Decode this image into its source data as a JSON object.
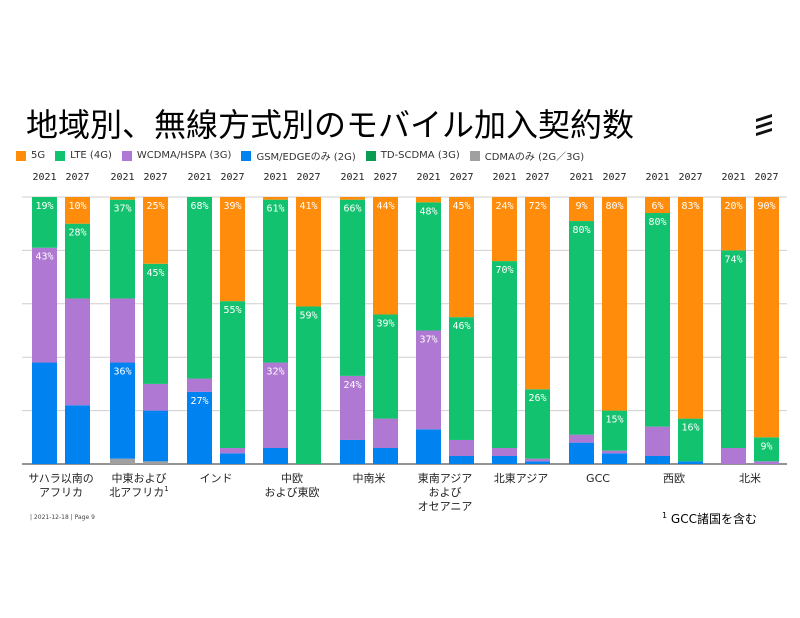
{
  "title": "地域別、無線方式別のモバイル加入契約数",
  "logo": "ericsson-logo",
  "footer": {
    "date_page": "| 2021-12-18 | Page 9",
    "footnote_mark": "1",
    "footnote_text": "GCC諸国を含む"
  },
  "chart_data": {
    "type": "bar",
    "stacked": true,
    "normalized": true,
    "title": "地域別、無線方式別のモバイル加入契約数",
    "xlabel": "",
    "ylabel": "",
    "ylim": [
      0,
      100
    ],
    "grid": true,
    "legend_position": "top-left",
    "legend": [
      {
        "name": "5G",
        "color": "#FF8C0A"
      },
      {
        "name": "LTE (4G)",
        "color": "#12C26E"
      },
      {
        "name": "WCDMA/HSPA (3G)",
        "color": "#AF78D2"
      },
      {
        "name": "GSM/EDGEのみ (2G)",
        "color": "#0082F0"
      },
      {
        "name": "TD-SCDMA (3G)",
        "color": "#0A9B55"
      },
      {
        "name": "CDMAのみ (2G／3G)",
        "color": "#A0A0A0"
      }
    ],
    "stack_order_bottom_to_top": [
      "CDMAのみ (2G／3G)",
      "TD-SCDMA (3G)",
      "GSM/EDGEのみ (2G)",
      "WCDMA/HSPA (3G)",
      "LTE (4G)",
      "5G"
    ],
    "regions": [
      {
        "label": [
          "サハラ以南の",
          "アフリカ"
        ],
        "footnote": ""
      },
      {
        "label": [
          "中東および",
          "北アフリカ"
        ],
        "footnote": "1"
      },
      {
        "label": [
          "インド"
        ],
        "footnote": ""
      },
      {
        "label": [
          "中欧",
          "および東欧"
        ],
        "footnote": ""
      },
      {
        "label": [
          "中南米"
        ],
        "footnote": ""
      },
      {
        "label": [
          "東南アジア",
          "および",
          "オセアニア"
        ],
        "footnote": ""
      },
      {
        "label": [
          "北東アジア"
        ],
        "footnote": ""
      },
      {
        "label": [
          "GCC"
        ],
        "footnote": ""
      },
      {
        "label": [
          "西欧"
        ],
        "footnote": ""
      },
      {
        "label": [
          "北米"
        ],
        "footnote": ""
      }
    ],
    "years": [
      "2021",
      "2027"
    ],
    "bars": [
      {
        "region": 0,
        "year": "2021",
        "values": {
          "5G": 0,
          "LTE (4G)": 19,
          "WCDMA/HSPA (3G)": 43,
          "GSM/EDGEのみ (2G)": 38,
          "TD-SCDMA (3G)": 0,
          "CDMAのみ (2G／3G)": 0
        },
        "labels": {
          "LTE (4G)": "19%",
          "WCDMA/HSPA (3G)": "43%"
        }
      },
      {
        "region": 0,
        "year": "2027",
        "values": {
          "5G": 10,
          "LTE (4G)": 28,
          "WCDMA/HSPA (3G)": 40,
          "GSM/EDGEのみ (2G)": 22,
          "TD-SCDMA (3G)": 0,
          "CDMAのみ (2G／3G)": 0
        },
        "labels": {
          "5G": "10%",
          "LTE (4G)": "28%"
        }
      },
      {
        "region": 1,
        "year": "2021",
        "values": {
          "5G": 1,
          "LTE (4G)": 37,
          "WCDMA/HSPA (3G)": 24,
          "GSM/EDGEのみ (2G)": 36,
          "TD-SCDMA (3G)": 0,
          "CDMAのみ (2G／3G)": 2
        },
        "labels": {
          "LTE (4G)": "37%",
          "GSM/EDGEのみ (2G)": "36%"
        }
      },
      {
        "region": 1,
        "year": "2027",
        "values": {
          "5G": 25,
          "LTE (4G)": 45,
          "WCDMA/HSPA (3G)": 10,
          "GSM/EDGEのみ (2G)": 19,
          "TD-SCDMA (3G)": 0,
          "CDMAのみ (2G／3G)": 1
        },
        "labels": {
          "5G": "25%",
          "LTE (4G)": "45%"
        }
      },
      {
        "region": 2,
        "year": "2021",
        "values": {
          "5G": 0,
          "LTE (4G)": 68,
          "WCDMA/HSPA (3G)": 5,
          "GSM/EDGEのみ (2G)": 27,
          "TD-SCDMA (3G)": 0,
          "CDMAのみ (2G／3G)": 0
        },
        "labels": {
          "LTE (4G)": "68%",
          "GSM/EDGEのみ (2G)": "27%"
        }
      },
      {
        "region": 2,
        "year": "2027",
        "values": {
          "5G": 39,
          "LTE (4G)": 55,
          "WCDMA/HSPA (3G)": 2,
          "GSM/EDGEのみ (2G)": 4,
          "TD-SCDMA (3G)": 0,
          "CDMAのみ (2G／3G)": 0
        },
        "labels": {
          "5G": "39%",
          "LTE (4G)": "55%"
        }
      },
      {
        "region": 3,
        "year": "2021",
        "values": {
          "5G": 1,
          "LTE (4G)": 61,
          "WCDMA/HSPA (3G)": 32,
          "GSM/EDGEのみ (2G)": 6,
          "TD-SCDMA (3G)": 0,
          "CDMAのみ (2G／3G)": 0
        },
        "labels": {
          "LTE (4G)": "61%",
          "WCDMA/HSPA (3G)": "32%"
        }
      },
      {
        "region": 3,
        "year": "2027",
        "values": {
          "5G": 41,
          "LTE (4G)": 59,
          "WCDMA/HSPA (3G)": 0,
          "GSM/EDGEのみ (2G)": 0,
          "TD-SCDMA (3G)": 0,
          "CDMAのみ (2G／3G)": 0
        },
        "labels": {
          "5G": "41%",
          "LTE (4G)": "59%"
        }
      },
      {
        "region": 4,
        "year": "2021",
        "values": {
          "5G": 1,
          "LTE (4G)": 66,
          "WCDMA/HSPA (3G)": 24,
          "GSM/EDGEのみ (2G)": 9,
          "TD-SCDMA (3G)": 0,
          "CDMAのみ (2G／3G)": 0
        },
        "labels": {
          "LTE (4G)": "66%",
          "WCDMA/HSPA (3G)": "24%"
        }
      },
      {
        "region": 4,
        "year": "2027",
        "values": {
          "5G": 44,
          "LTE (4G)": 39,
          "WCDMA/HSPA (3G)": 11,
          "GSM/EDGEのみ (2G)": 6,
          "TD-SCDMA (3G)": 0,
          "CDMAのみ (2G／3G)": 0
        },
        "labels": {
          "5G": "44%",
          "LTE (4G)": "39%"
        }
      },
      {
        "region": 5,
        "year": "2021",
        "values": {
          "5G": 2,
          "LTE (4G)": 48,
          "WCDMA/HSPA (3G)": 37,
          "GSM/EDGEのみ (2G)": 13,
          "TD-SCDMA (3G)": 0,
          "CDMAのみ (2G／3G)": 0
        },
        "labels": {
          "LTE (4G)": "48%",
          "WCDMA/HSPA (3G)": "37%"
        }
      },
      {
        "region": 5,
        "year": "2027",
        "values": {
          "5G": 45,
          "LTE (4G)": 46,
          "WCDMA/HSPA (3G)": 6,
          "GSM/EDGEのみ (2G)": 3,
          "TD-SCDMA (3G)": 0,
          "CDMAのみ (2G／3G)": 0
        },
        "labels": {
          "5G": "45%",
          "LTE (4G)": "46%"
        }
      },
      {
        "region": 6,
        "year": "2021",
        "values": {
          "5G": 24,
          "LTE (4G)": 70,
          "WCDMA/HSPA (3G)": 3,
          "GSM/EDGEのみ (2G)": 3,
          "TD-SCDMA (3G)": 0,
          "CDMAのみ (2G／3G)": 0
        },
        "labels": {
          "5G": "24%",
          "LTE (4G)": "70%"
        }
      },
      {
        "region": 6,
        "year": "2027",
        "values": {
          "5G": 72,
          "LTE (4G)": 26,
          "WCDMA/HSPA (3G)": 1,
          "GSM/EDGEのみ (2G)": 1,
          "TD-SCDMA (3G)": 0,
          "CDMAのみ (2G／3G)": 0
        },
        "labels": {
          "5G": "72%",
          "LTE (4G)": "26%"
        }
      },
      {
        "region": 7,
        "year": "2021",
        "values": {
          "5G": 9,
          "LTE (4G)": 80,
          "WCDMA/HSPA (3G)": 3,
          "GSM/EDGEのみ (2G)": 8,
          "TD-SCDMA (3G)": 0,
          "CDMAのみ (2G／3G)": 0
        },
        "labels": {
          "5G": "9%",
          "LTE (4G)": "80%"
        }
      },
      {
        "region": 7,
        "year": "2027",
        "values": {
          "5G": 80,
          "LTE (4G)": 15,
          "WCDMA/HSPA (3G)": 1,
          "GSM/EDGEのみ (2G)": 4,
          "TD-SCDMA (3G)": 0,
          "CDMAのみ (2G／3G)": 0
        },
        "labels": {
          "5G": "80%",
          "LTE (4G)": "15%"
        }
      },
      {
        "region": 8,
        "year": "2021",
        "values": {
          "5G": 6,
          "LTE (4G)": 80,
          "WCDMA/HSPA (3G)": 11,
          "GSM/EDGEのみ (2G)": 3,
          "TD-SCDMA (3G)": 0,
          "CDMAのみ (2G／3G)": 0
        },
        "labels": {
          "5G": "6%",
          "LTE (4G)": "80%"
        }
      },
      {
        "region": 8,
        "year": "2027",
        "values": {
          "5G": 83,
          "LTE (4G)": 16,
          "WCDMA/HSPA (3G)": 0,
          "GSM/EDGEのみ (2G)": 1,
          "TD-SCDMA (3G)": 0,
          "CDMAのみ (2G／3G)": 0
        },
        "labels": {
          "5G": "83%",
          "LTE (4G)": "16%"
        }
      },
      {
        "region": 9,
        "year": "2021",
        "values": {
          "5G": 20,
          "LTE (4G)": 74,
          "WCDMA/HSPA (3G)": 6,
          "GSM/EDGEのみ (2G)": 0,
          "TD-SCDMA (3G)": 0,
          "CDMAのみ (2G／3G)": 0
        },
        "labels": {
          "5G": "20%",
          "LTE (4G)": "74%"
        }
      },
      {
        "region": 9,
        "year": "2027",
        "values": {
          "5G": 90,
          "LTE (4G)": 9,
          "WCDMA/HSPA (3G)": 1,
          "GSM/EDGEのみ (2G)": 0,
          "TD-SCDMA (3G)": 0,
          "CDMAのみ (2G／3G)": 0
        },
        "labels": {
          "5G": "90%",
          "LTE (4G)": "9%"
        }
      }
    ]
  }
}
